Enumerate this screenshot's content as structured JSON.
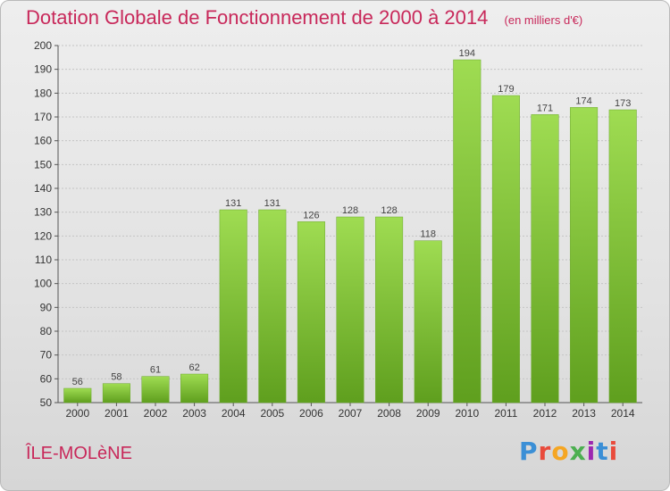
{
  "title": "Dotation Globale de Fonctionnement de 2000 à 2014",
  "unit_note": "(en milliers d'€)",
  "commune": "ÎLE-MOLèNE",
  "logo": {
    "text": "Proxiti",
    "letters": [
      "P",
      "r",
      "o",
      "x",
      "i",
      "t",
      "i"
    ],
    "colors": [
      "#3b8fd6",
      "#e94b3c",
      "#f5a623",
      "#4caf50",
      "#9c27b0",
      "#3b8fd6",
      "#e94b3c"
    ]
  },
  "chart_data": {
    "type": "bar",
    "categories": [
      "2000",
      "2001",
      "2002",
      "2003",
      "2004",
      "2005",
      "2006",
      "2007",
      "2008",
      "2009",
      "2010",
      "2011",
      "2012",
      "2013",
      "2014"
    ],
    "values": [
      56,
      58,
      61,
      62,
      131,
      131,
      126,
      128,
      128,
      118,
      194,
      179,
      171,
      174,
      173
    ],
    "ylim": [
      50,
      200
    ],
    "yticks": [
      50,
      60,
      70,
      80,
      90,
      100,
      110,
      120,
      130,
      140,
      150,
      160,
      170,
      180,
      190,
      200
    ],
    "grid": true,
    "bar_color": "#7dc33a",
    "title": "Dotation Globale de Fonctionnement de 2000 à 2014",
    "xlabel": "",
    "ylabel": ""
  }
}
